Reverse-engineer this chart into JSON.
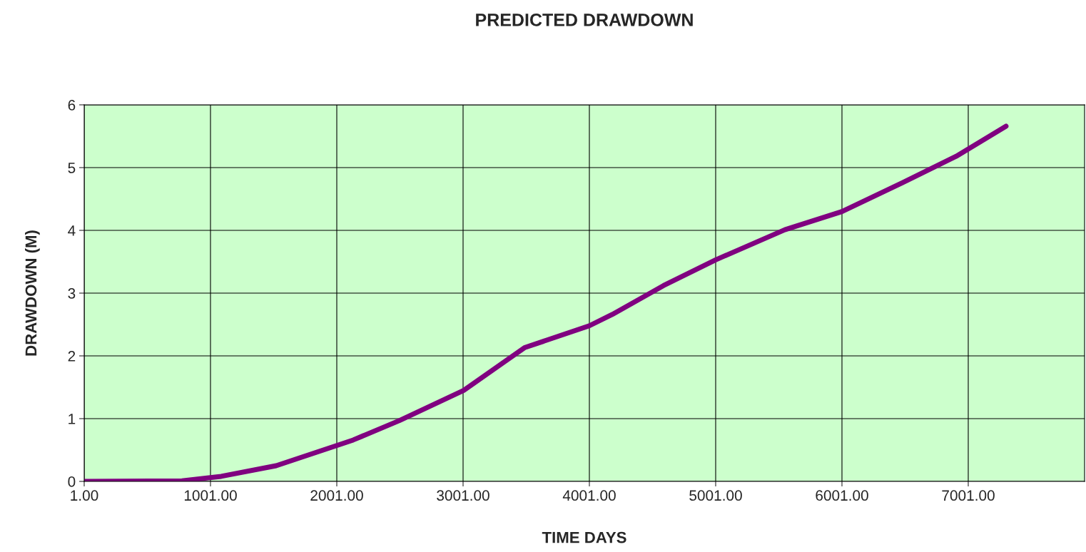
{
  "chart_data": {
    "type": "line",
    "title": "PREDICTED DRAWDOWN",
    "xlabel": "TIME DAYS",
    "ylabel": "DRAWDOWN (M)",
    "series": [
      {
        "color": "#800080",
        "x": [
          1,
          775,
          1086,
          1521,
          2131,
          2498,
          3006,
          3487,
          4001,
          4182,
          4588,
          5001,
          5549,
          6001,
          6481,
          6905,
          7300
        ],
        "values": [
          0,
          0.01,
          0.08,
          0.25,
          0.66,
          0.97,
          1.45,
          2.13,
          2.48,
          2.66,
          3.12,
          3.53,
          4.01,
          4.3,
          4.76,
          5.18,
          5.66
        ]
      }
    ],
    "xlim": [
      1,
      7922
    ],
    "xticks": [
      {
        "value": 1,
        "label": "1.00"
      },
      {
        "value": 1001,
        "label": "1001.00"
      },
      {
        "value": 2001,
        "label": "2001.00"
      },
      {
        "value": 3001,
        "label": "3001.00"
      },
      {
        "value": 4001,
        "label": "4001.00"
      },
      {
        "value": 5001,
        "label": "5001.00"
      },
      {
        "value": 6001,
        "label": "6001.00"
      },
      {
        "value": 7001,
        "label": "7001.00"
      }
    ],
    "ylim": [
      0,
      6
    ],
    "yticks": [
      0,
      1,
      2,
      3,
      4,
      5,
      6
    ],
    "grid": true,
    "marker": "none",
    "line_style": "solid"
  }
}
